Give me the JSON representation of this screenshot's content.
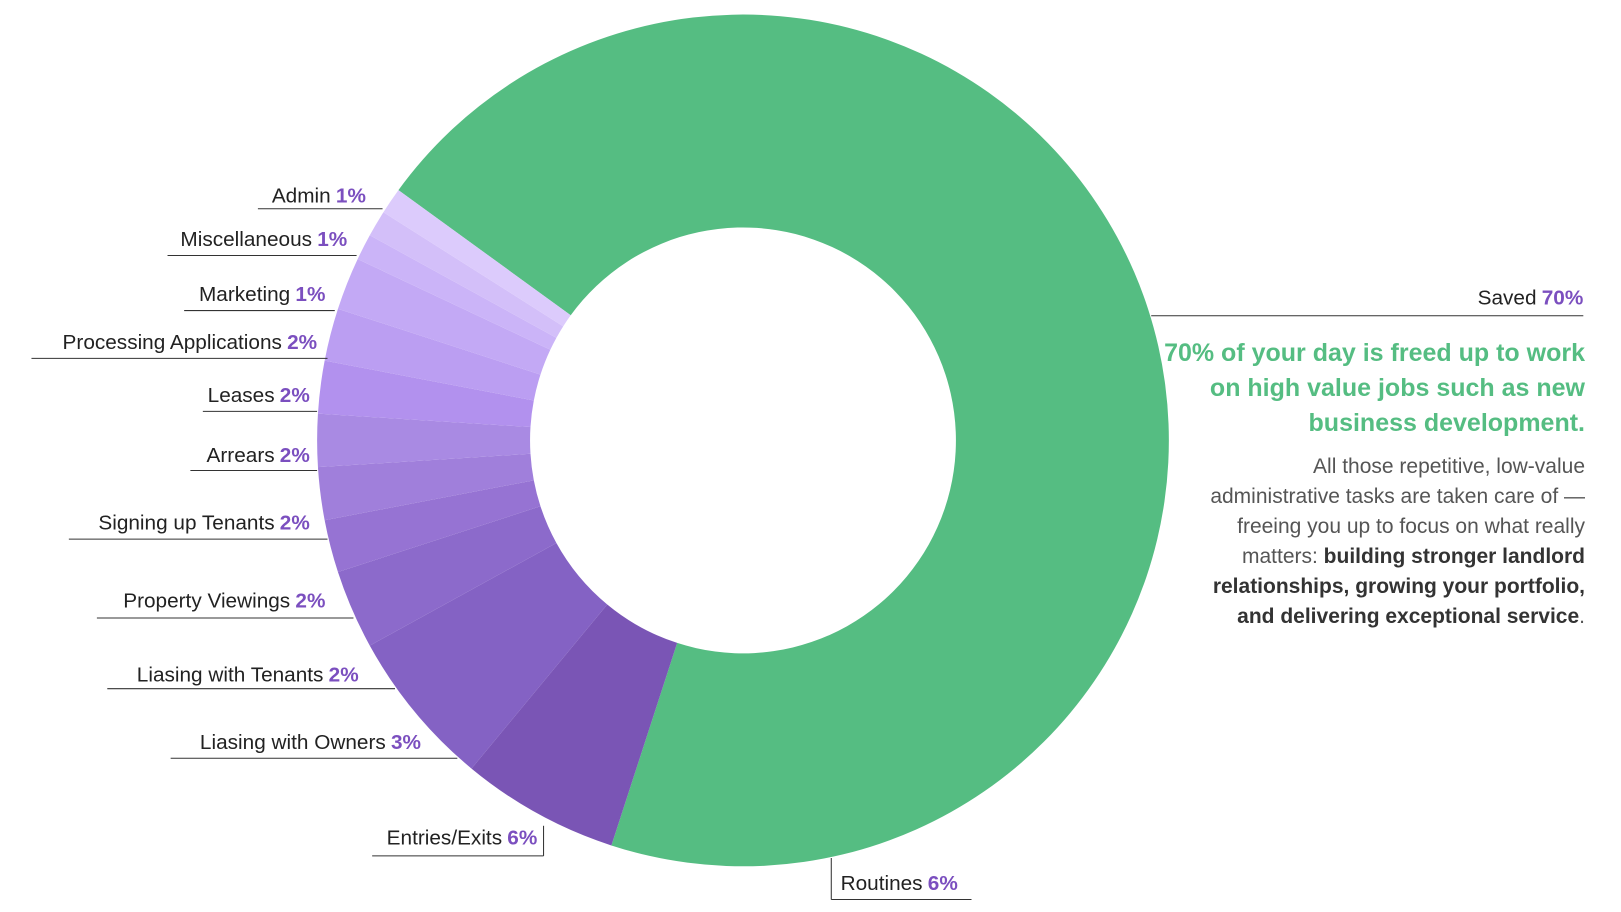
{
  "chart_data": {
    "type": "donut",
    "categories": [
      "Saved",
      "Routines",
      "Entries/Exits",
      "Liasing with Owners",
      "Liasing with Tenants",
      "Property Viewings",
      "Signing up Tenants",
      "Arrears",
      "Leases",
      "Processing Applications",
      "Marketing",
      "Miscellaneous",
      "Admin"
    ],
    "values": [
      70,
      6,
      6,
      3,
      2,
      2,
      2,
      2,
      2,
      2,
      1,
      1,
      1
    ],
    "value_labels": [
      "70%",
      "6%",
      "6%",
      "3%",
      "2%",
      "2%",
      "2%",
      "2%",
      "2%",
      "2%",
      "1%",
      "1%",
      "1%"
    ],
    "colors": [
      "#55bd82",
      "#7a55b5",
      "#8462c4",
      "#8c6acb",
      "#9673d3",
      "#a07fdb",
      "#a98ae3",
      "#b291ee",
      "#bb9ef2",
      "#c3a9f5",
      "#cbb4f8",
      "#d3bff9",
      "#dccbfc"
    ],
    "headline": "70% of your day is freed up to work on high value jobs such as new business development.",
    "body": [
      "All those repetitive, low-value administrative tasks are taken care of — freeing you up to focus on what really matters: ",
      "building stronger landlord relationships, growing your portfolio, and delivering exceptional service",
      "."
    ]
  }
}
